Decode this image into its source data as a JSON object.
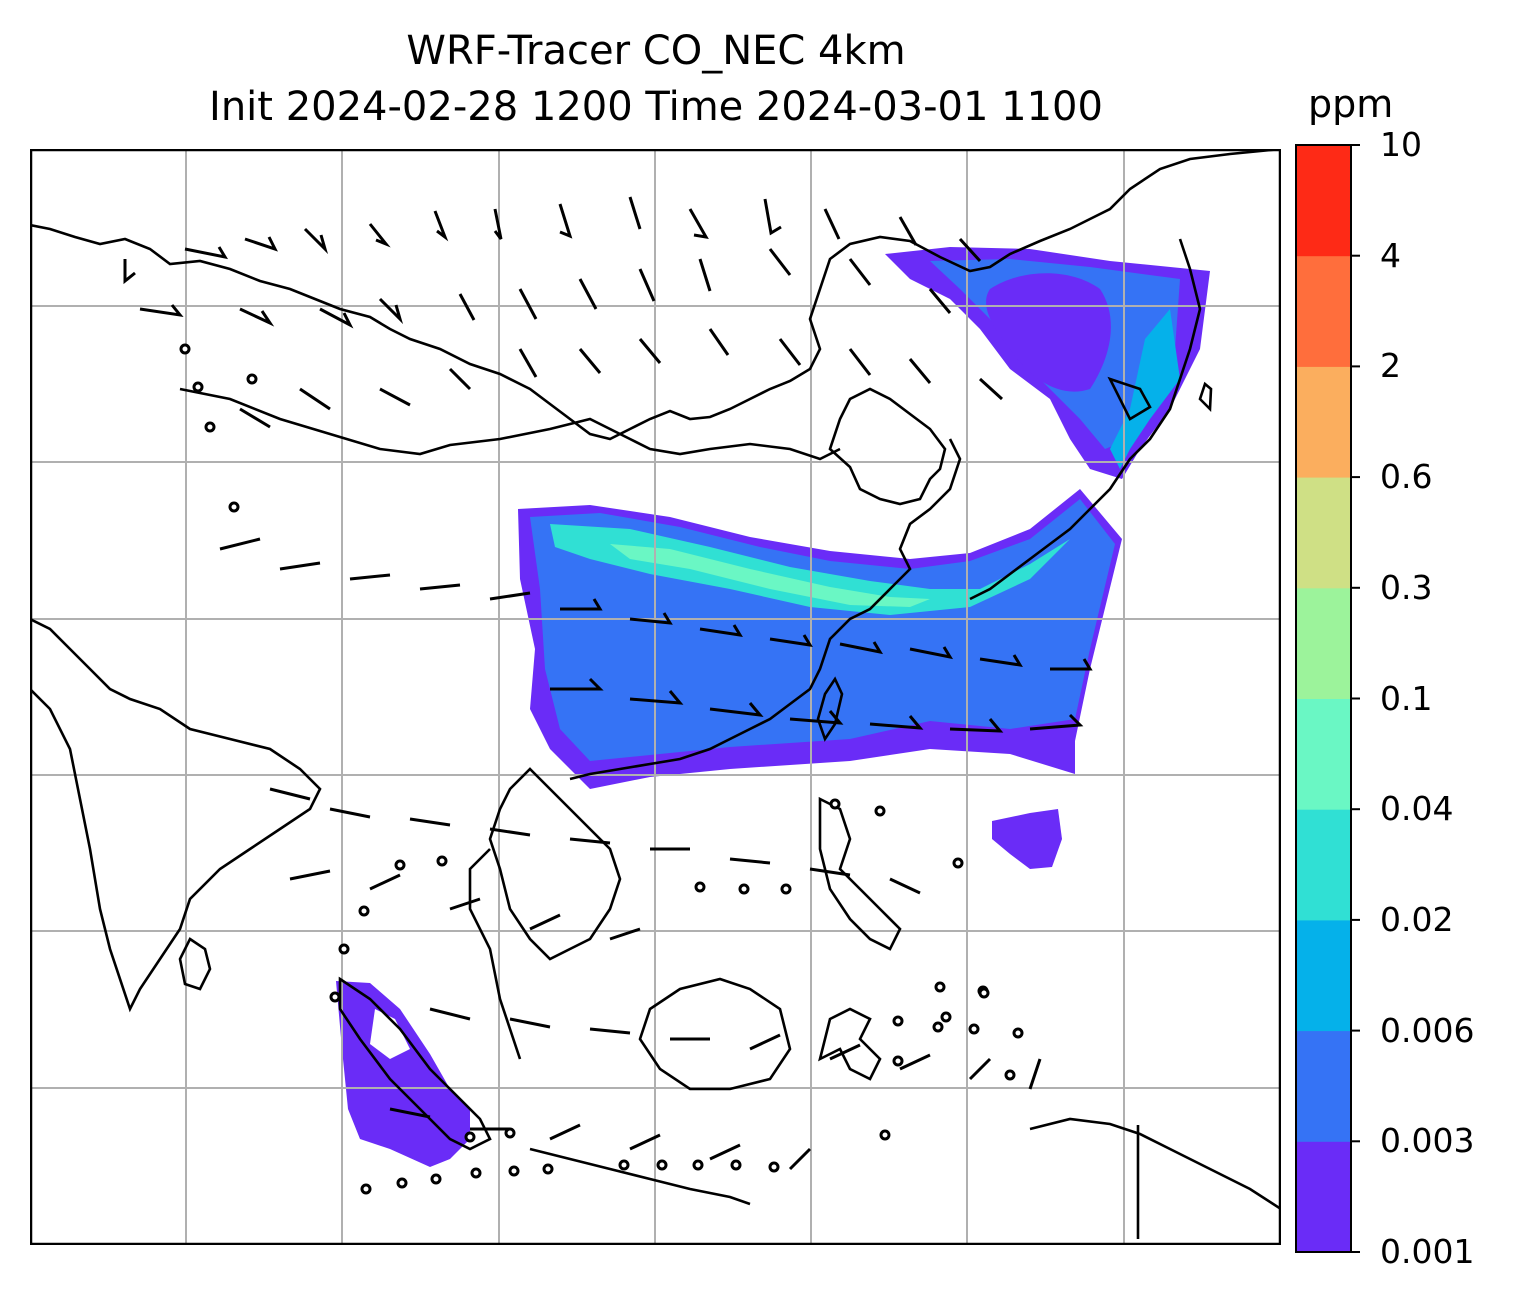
{
  "title": {
    "line1": "WRF-Tracer CO_NEC 4km",
    "line2": "Init 2024-02-28 1200 Time 2024-03-01 1100"
  },
  "colorbar": {
    "unit": "ppm",
    "levels": [
      "0.001",
      "0.003",
      "0.006",
      "0.02",
      "0.04",
      "0.1",
      "0.3",
      "0.6",
      "2",
      "4",
      "10"
    ],
    "colors": [
      "#6a2cf7",
      "#3573f5",
      "#05b1ea",
      "#30e0d4",
      "#6af7c4",
      "#9cf39b",
      "#cfe085",
      "#fbae5e",
      "#ff6e3c",
      "#fe2a16"
    ]
  },
  "map": {
    "field": "CO_NEC tracer concentration",
    "wind_barbs": true,
    "gridlines": true
  }
}
